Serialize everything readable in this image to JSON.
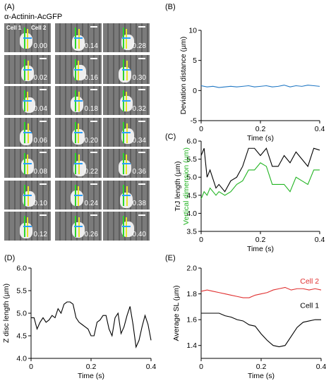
{
  "panel_a": {
    "label": "(A)",
    "title": "α-Actinin-AcGFP",
    "cell1": "Cell 1",
    "cell2": "Cell 2",
    "times": [
      "0.00",
      "0.02",
      "0.04",
      "0.06",
      "0.08",
      "0.10",
      "0.12",
      "0.14",
      "0.16",
      "0.18",
      "0.20",
      "0.22",
      "0.24",
      "0.26",
      "0.28",
      "0.30",
      "0.32",
      "0.34",
      "0.36",
      "0.38",
      "0.40"
    ]
  },
  "colors": {
    "blue": "#1f77c4",
    "black": "#000000",
    "green": "#22b422",
    "red": "#e03030"
  },
  "chart_data": [
    {
      "id": "B",
      "label": "(B)",
      "type": "line",
      "xlabel": "Time (s)",
      "ylabel": "Deviation distance (µm)",
      "xlim": [
        0,
        0.4
      ],
      "ylim": [
        -5,
        10
      ],
      "xticks": [
        "0",
        "0.2",
        "0.4"
      ],
      "yticks": [
        "-5",
        "0",
        "5",
        "10"
      ],
      "series": [
        {
          "color": "#1f77c4",
          "x": [
            0,
            0.02,
            0.04,
            0.06,
            0.08,
            0.1,
            0.12,
            0.14,
            0.16,
            0.18,
            0.2,
            0.22,
            0.24,
            0.26,
            0.28,
            0.3,
            0.32,
            0.34,
            0.36,
            0.38,
            0.4
          ],
          "y": [
            0.8,
            0.6,
            0.7,
            0.5,
            0.6,
            0.7,
            0.6,
            0.7,
            0.8,
            0.6,
            0.7,
            0.8,
            0.6,
            0.7,
            0.9,
            0.6,
            0.8,
            0.7,
            0.9,
            0.8,
            0.7
          ]
        }
      ]
    },
    {
      "id": "C",
      "label": "(C)",
      "type": "line",
      "xlabel": "Time (s)",
      "ylabel": "TrJ length (µm)",
      "ylabel2": "Vertical dimension (µm)",
      "xlim": [
        0,
        0.4
      ],
      "ylim": [
        3.5,
        6.0
      ],
      "xticks": [
        "0",
        "0.2",
        "0.4"
      ],
      "yticks": [
        "3.5",
        "4.0",
        "4.5",
        "5.0",
        "5.5",
        "6.0"
      ],
      "series": [
        {
          "color": "#000000",
          "x": [
            0,
            0.01,
            0.02,
            0.03,
            0.05,
            0.06,
            0.08,
            0.1,
            0.12,
            0.14,
            0.16,
            0.18,
            0.2,
            0.22,
            0.24,
            0.26,
            0.28,
            0.3,
            0.32,
            0.34,
            0.36,
            0.38,
            0.4
          ],
          "y": [
            5.6,
            5.8,
            5.0,
            5.2,
            4.7,
            4.8,
            4.6,
            4.9,
            5.0,
            5.3,
            5.8,
            5.8,
            5.6,
            5.8,
            5.3,
            5.3,
            5.6,
            5.4,
            5.7,
            5.5,
            5.3,
            5.8,
            5.75
          ]
        },
        {
          "color": "#22b422",
          "x": [
            0,
            0.01,
            0.02,
            0.03,
            0.05,
            0.06,
            0.08,
            0.1,
            0.12,
            0.14,
            0.16,
            0.18,
            0.2,
            0.22,
            0.24,
            0.26,
            0.28,
            0.3,
            0.32,
            0.34,
            0.36,
            0.38,
            0.4
          ],
          "y": [
            4.4,
            4.6,
            4.5,
            4.7,
            4.5,
            4.6,
            4.5,
            4.6,
            4.8,
            4.9,
            5.2,
            5.2,
            5.4,
            5.3,
            4.8,
            4.8,
            4.8,
            4.6,
            5.0,
            4.9,
            4.8,
            5.2,
            5.2
          ]
        }
      ]
    },
    {
      "id": "D",
      "label": "(D)",
      "type": "line",
      "xlabel": "Time (s)",
      "ylabel": "Z disc length (µm)",
      "xlim": [
        0,
        0.4
      ],
      "ylim": [
        4.0,
        6.0
      ],
      "xticks": [
        "0",
        "0.2",
        "0.4"
      ],
      "yticks": [
        "4.0",
        "4.5",
        "5.0",
        "5.5",
        "6.0"
      ],
      "series": [
        {
          "color": "#000000",
          "x": [
            0,
            0.01,
            0.02,
            0.03,
            0.04,
            0.05,
            0.06,
            0.07,
            0.08,
            0.09,
            0.1,
            0.11,
            0.12,
            0.13,
            0.14,
            0.15,
            0.16,
            0.17,
            0.18,
            0.19,
            0.2,
            0.21,
            0.22,
            0.23,
            0.24,
            0.25,
            0.26,
            0.27,
            0.28,
            0.29,
            0.3,
            0.31,
            0.32,
            0.33,
            0.34,
            0.35,
            0.36,
            0.37,
            0.38,
            0.39,
            0.4
          ],
          "y": [
            4.9,
            4.9,
            4.65,
            4.8,
            4.9,
            4.8,
            4.85,
            4.95,
            4.9,
            5.1,
            5.0,
            5.2,
            5.25,
            5.25,
            5.2,
            4.9,
            4.8,
            4.75,
            4.7,
            4.65,
            4.5,
            4.5,
            4.8,
            4.85,
            4.95,
            4.95,
            4.65,
            4.5,
            4.9,
            5.0,
            4.55,
            4.7,
            4.95,
            5.15,
            4.75,
            4.25,
            4.4,
            4.7,
            4.95,
            4.75,
            4.4
          ]
        }
      ]
    },
    {
      "id": "E",
      "label": "(E)",
      "type": "line",
      "xlabel": "Time (s)",
      "ylabel": "Average SL (µm)",
      "xlim": [
        0,
        0.4
      ],
      "ylim": [
        1.3,
        2.0
      ],
      "xticks": [
        "0",
        "0.2",
        "0.4"
      ],
      "yticks": [
        "1.4",
        "1.6",
        "1.8",
        "2.0"
      ],
      "series": [
        {
          "name": "Cell 2",
          "color": "#e03030",
          "x": [
            0,
            0.02,
            0.04,
            0.06,
            0.08,
            0.1,
            0.12,
            0.14,
            0.16,
            0.18,
            0.2,
            0.22,
            0.24,
            0.26,
            0.28,
            0.3,
            0.32,
            0.34,
            0.36,
            0.38,
            0.4
          ],
          "y": [
            1.82,
            1.83,
            1.82,
            1.81,
            1.8,
            1.79,
            1.78,
            1.77,
            1.77,
            1.79,
            1.8,
            1.81,
            1.83,
            1.84,
            1.85,
            1.83,
            1.84,
            1.84,
            1.83,
            1.84,
            1.83
          ]
        },
        {
          "name": "Cell 1",
          "color": "#000000",
          "x": [
            0,
            0.02,
            0.04,
            0.06,
            0.08,
            0.1,
            0.12,
            0.14,
            0.16,
            0.18,
            0.2,
            0.22,
            0.24,
            0.26,
            0.28,
            0.3,
            0.32,
            0.34,
            0.36,
            0.38,
            0.4
          ],
          "y": [
            1.65,
            1.65,
            1.65,
            1.65,
            1.63,
            1.62,
            1.6,
            1.59,
            1.56,
            1.55,
            1.49,
            1.44,
            1.4,
            1.39,
            1.4,
            1.47,
            1.54,
            1.58,
            1.59,
            1.6,
            1.6
          ]
        }
      ]
    }
  ]
}
